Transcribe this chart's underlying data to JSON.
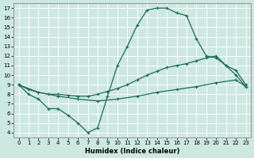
{
  "xlabel": "Humidex (Indice chaleur)",
  "bg_color": "#cce8e0",
  "grid_color": "#ffffff",
  "line_color": "#1a6b5a",
  "xlim": [
    -0.5,
    23.5
  ],
  "ylim": [
    3.5,
    17.5
  ],
  "xticks": [
    0,
    1,
    2,
    3,
    4,
    5,
    6,
    7,
    8,
    9,
    10,
    11,
    12,
    13,
    14,
    15,
    16,
    17,
    18,
    19,
    20,
    21,
    22,
    23
  ],
  "yticks": [
    4,
    5,
    6,
    7,
    8,
    9,
    10,
    11,
    12,
    13,
    14,
    15,
    16,
    17
  ],
  "curve1_x": [
    0,
    1,
    2,
    3,
    4,
    5,
    6,
    7,
    8,
    9,
    10,
    11,
    12,
    13,
    14,
    15,
    16,
    17,
    18,
    19,
    20,
    21,
    22,
    23
  ],
  "curve1_y": [
    9.0,
    8.0,
    7.5,
    6.5,
    6.5,
    5.8,
    5.0,
    4.0,
    4.5,
    7.8,
    11.0,
    13.0,
    15.2,
    16.8,
    17.0,
    17.0,
    16.5,
    16.2,
    13.8,
    12.0,
    11.8,
    11.0,
    10.5,
    9.0
  ],
  "curve2_x": [
    0,
    1,
    2,
    3,
    4,
    5,
    6,
    7,
    8,
    9,
    10,
    11,
    12,
    13,
    14,
    15,
    16,
    17,
    18,
    19,
    20,
    21,
    22,
    23
  ],
  "curve2_y": [
    9.0,
    8.5,
    8.2,
    8.0,
    8.0,
    7.9,
    7.8,
    7.8,
    8.0,
    8.3,
    8.6,
    9.0,
    9.5,
    10.0,
    10.4,
    10.8,
    11.0,
    11.2,
    11.5,
    11.8,
    12.0,
    11.0,
    10.0,
    8.8
  ],
  "curve3_x": [
    0,
    2,
    4,
    6,
    8,
    10,
    12,
    14,
    16,
    18,
    20,
    22,
    23
  ],
  "curve3_y": [
    9.0,
    8.2,
    7.8,
    7.5,
    7.3,
    7.5,
    7.8,
    8.2,
    8.5,
    8.8,
    9.2,
    9.5,
    8.8
  ]
}
